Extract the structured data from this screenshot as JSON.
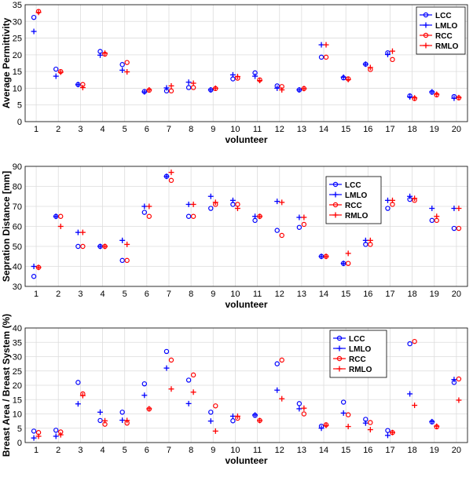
{
  "colors": {
    "LCC": "#0000ff",
    "LMLO": "#0000ff",
    "RCC": "#ff0000",
    "RMLO": "#ff0000",
    "grid": "#dcdcdc",
    "frame": "#000000"
  },
  "chart_data": [
    {
      "type": "scatter",
      "xlabel": "volunteer",
      "ylabel": "Average Permittivity",
      "x": [
        1,
        2,
        3,
        4,
        5,
        6,
        7,
        8,
        9,
        10,
        11,
        12,
        13,
        14,
        15,
        16,
        17,
        18,
        19,
        20
      ],
      "xlim": [
        0.5,
        20.5
      ],
      "ylim": [
        0,
        35
      ],
      "yticks": [
        0,
        5,
        10,
        15,
        20,
        25,
        30,
        35
      ],
      "grid": true,
      "legend_position": "top-right",
      "series": [
        {
          "name": "LCC",
          "marker": "circle",
          "values": [
            31.2,
            15.7,
            11.1,
            21.0,
            17.1,
            9.0,
            9.2,
            10.2,
            9.5,
            12.8,
            14.6,
            10.7,
            9.5,
            19.3,
            13.1,
            17.2,
            20.6,
            7.7,
            8.8,
            7.5
          ]
        },
        {
          "name": "LMLO",
          "marker": "plus",
          "values": [
            27.0,
            13.6,
            11.1,
            19.9,
            15.4,
            8.9,
            10.1,
            11.8,
            9.5,
            14.0,
            13.6,
            10.0,
            9.5,
            23.0,
            13.3,
            17.2,
            20.1,
            7.4,
            8.9,
            7.0
          ]
        },
        {
          "name": "RCC",
          "marker": "circle",
          "values": [
            33.0,
            15.0,
            11.1,
            20.2,
            17.7,
            9.4,
            9.2,
            10.2,
            9.9,
            13.0,
            12.5,
            10.5,
            9.9,
            19.3,
            12.8,
            15.6,
            18.6,
            6.9,
            8.0,
            7.1
          ]
        },
        {
          "name": "RMLO",
          "marker": "plus",
          "values": [
            32.7,
            14.8,
            10.2,
            20.5,
            14.9,
            9.5,
            10.7,
            11.5,
            10.0,
            13.5,
            12.3,
            9.5,
            9.9,
            23.0,
            12.6,
            16.2,
            21.1,
            7.1,
            8.2,
            7.2
          ]
        }
      ]
    },
    {
      "type": "scatter",
      "xlabel": "volunteer",
      "ylabel": "Sepration Distance [mm]",
      "x": [
        1,
        2,
        3,
        4,
        5,
        6,
        7,
        8,
        9,
        10,
        11,
        12,
        13,
        14,
        15,
        16,
        17,
        18,
        19,
        20
      ],
      "xlim": [
        0.5,
        20.5
      ],
      "ylim": [
        30,
        90
      ],
      "yticks": [
        30,
        40,
        50,
        60,
        70,
        80,
        90
      ],
      "grid": true,
      "legend_position": "top-right",
      "series": [
        {
          "name": "LCC",
          "marker": "circle",
          "values": [
            35,
            65,
            50,
            50,
            43,
            67,
            85,
            65,
            69,
            71,
            63,
            58,
            59.5,
            45,
            41.5,
            51,
            69,
            73.5,
            63,
            59
          ]
        },
        {
          "name": "LMLO",
          "marker": "plus",
          "values": [
            40,
            65,
            57,
            50,
            53,
            70,
            85,
            71,
            75,
            73,
            65,
            72.5,
            64.5,
            45,
            41.5,
            53,
            73,
            75,
            69,
            69
          ]
        },
        {
          "name": "RCC",
          "marker": "circle",
          "values": [
            39.5,
            65,
            50,
            50,
            43,
            65,
            83,
            65,
            71,
            71,
            65,
            55.5,
            61,
            45,
            41.5,
            51,
            71,
            73,
            63,
            59
          ]
        },
        {
          "name": "RMLO",
          "marker": "plus",
          "values": [
            39.5,
            60,
            57,
            50,
            51,
            70,
            87,
            71,
            72,
            69,
            65,
            72,
            64.5,
            45,
            46.5,
            53,
            73,
            74,
            65,
            69
          ]
        }
      ]
    },
    {
      "type": "scatter",
      "xlabel": "volunteer",
      "ylabel": "Breast Area / Breast System (%)",
      "x": [
        1,
        2,
        3,
        4,
        5,
        6,
        7,
        8,
        9,
        10,
        11,
        12,
        13,
        14,
        15,
        16,
        17,
        18,
        19,
        20
      ],
      "xlim": [
        0.5,
        20.5
      ],
      "ylim": [
        0,
        40
      ],
      "yticks": [
        0,
        5,
        10,
        15,
        20,
        25,
        30,
        35,
        40
      ],
      "grid": true,
      "legend_position": "top-right",
      "series": [
        {
          "name": "LCC",
          "marker": "circle",
          "values": [
            4.0,
            4.3,
            21.0,
            7.7,
            10.6,
            20.5,
            31.8,
            21.8,
            10.6,
            7.6,
            9.5,
            27.5,
            13.6,
            5.7,
            14.1,
            8.1,
            4.2,
            34.5,
            7.2,
            21.0
          ]
        },
        {
          "name": "LMLO",
          "marker": "plus",
          "values": [
            1.6,
            2.2,
            13.5,
            10.6,
            7.8,
            16.5,
            26.0,
            13.6,
            7.5,
            9.2,
            9.6,
            18.3,
            11.8,
            5.0,
            10.3,
            6.8,
            2.5,
            17.0,
            7.3,
            22.0
          ]
        },
        {
          "name": "RCC",
          "marker": "circle",
          "values": [
            3.5,
            3.7,
            17.0,
            6.4,
            6.8,
            11.7,
            28.8,
            23.6,
            12.8,
            8.5,
            7.7,
            28.8,
            10.0,
            6.2,
            9.7,
            7.0,
            3.5,
            35.3,
            5.5,
            22.2
          ]
        },
        {
          "name": "RMLO",
          "marker": "plus",
          "values": [
            2.2,
            2.7,
            16.4,
            7.6,
            7.7,
            11.8,
            18.7,
            17.6,
            4.0,
            9.2,
            7.7,
            15.3,
            12.0,
            6.0,
            5.6,
            4.5,
            3.5,
            13.0,
            5.7,
            14.8
          ]
        }
      ]
    }
  ]
}
